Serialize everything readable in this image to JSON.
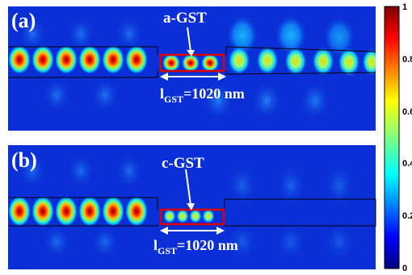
{
  "panels": [
    {
      "id": "a",
      "panel_label": "(a)",
      "material_label": "a-GST",
      "length_label_main": "l",
      "length_label_sub": "GST",
      "length_label_value": "=1020 nm"
    },
    {
      "id": "b",
      "panel_label": "(b)",
      "material_label": "c-GST",
      "length_label_main": "l",
      "length_label_sub": "GST",
      "length_label_value": "=1020 nm"
    }
  ],
  "colorbar": {
    "ticks": [
      "1",
      "0.8",
      "0.6",
      "0.4",
      "0.2",
      "0"
    ],
    "colormap": "jet",
    "colors": [
      "#00007f",
      "#0000ff",
      "#007fff",
      "#00ffff",
      "#7fff7f",
      "#ffff00",
      "#ff7f00",
      "#ff0000",
      "#7f0000"
    ]
  },
  "colors": {
    "background_field": "#0a2fd6",
    "waveguide_outline": "#000000",
    "gst_outline": "#e00000",
    "annotation": "#ffffff"
  }
}
